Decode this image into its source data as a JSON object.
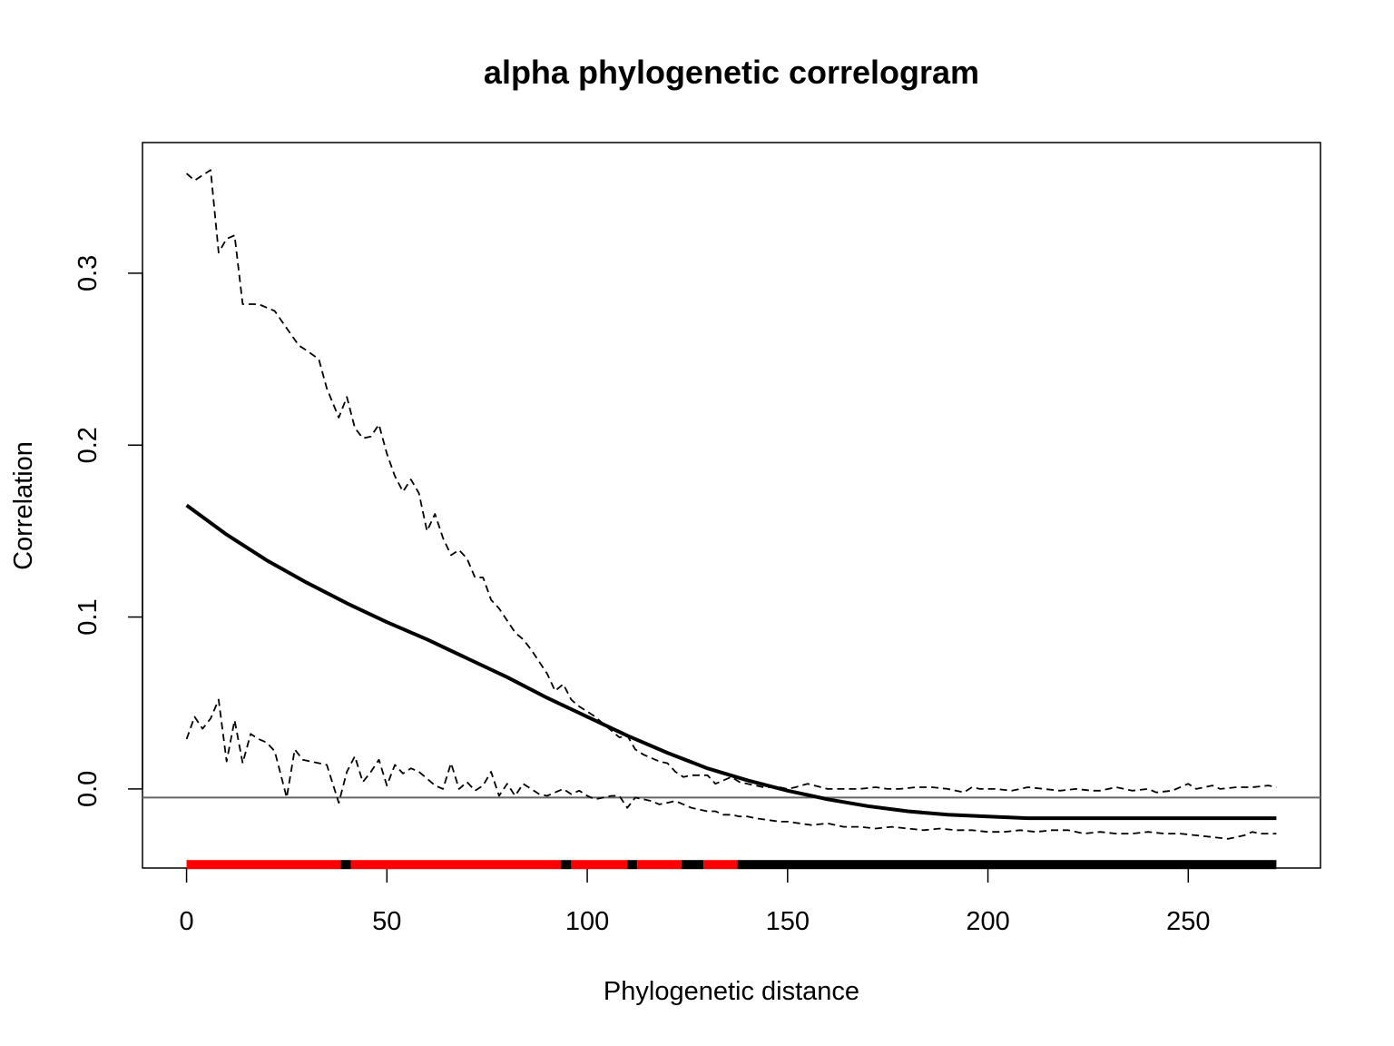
{
  "chart_data": {
    "type": "line",
    "title": "alpha phylogenetic correlogram",
    "xlabel": "Phylogenetic distance",
    "ylabel": "Correlation",
    "xlim": [
      -11,
      283
    ],
    "ylim": [
      -0.046,
      0.376
    ],
    "x_ticks": [
      0,
      50,
      100,
      150,
      200,
      250
    ],
    "x_tick_labels": [
      "0",
      "50",
      "100",
      "150",
      "200",
      "250"
    ],
    "y_ticks": [
      0.0,
      0.1,
      0.2,
      0.3
    ],
    "y_tick_labels": [
      "0.0",
      "0.1",
      "0.2",
      "0.3"
    ],
    "reference_line": {
      "y": -0.005,
      "color": "#666666"
    },
    "grid": false,
    "legend": "none",
    "series": [
      {
        "style": "solid",
        "color": "#000000",
        "x": [
          0,
          10,
          20,
          30,
          40,
          50,
          60,
          70,
          80,
          90,
          100,
          110,
          120,
          130,
          140,
          150,
          160,
          170,
          180,
          190,
          200,
          210,
          220,
          230,
          240,
          250,
          260,
          272
        ],
        "y": [
          0.165,
          0.148,
          0.133,
          0.12,
          0.108,
          0.097,
          0.087,
          0.076,
          0.065,
          0.053,
          0.042,
          0.031,
          0.021,
          0.012,
          0.005,
          -0.001,
          -0.006,
          -0.01,
          -0.013,
          -0.015,
          -0.016,
          -0.017,
          -0.017,
          -0.017,
          -0.017,
          -0.017,
          -0.017,
          -0.017
        ]
      },
      {
        "style": "dashed",
        "color": "#000000",
        "x": [
          0,
          2,
          4,
          6,
          8,
          10,
          12,
          14,
          16,
          18,
          20,
          22,
          25,
          28,
          30,
          33,
          35,
          38,
          40,
          42,
          44,
          46,
          48,
          50,
          52,
          54,
          56,
          58,
          60,
          62,
          64,
          66,
          68,
          70,
          72,
          74,
          76,
          78,
          80,
          82,
          84,
          86,
          88,
          90,
          92,
          94,
          96,
          98,
          100,
          102,
          104,
          106,
          108,
          110,
          112,
          114,
          116,
          118,
          120,
          122,
          124,
          126,
          128,
          130,
          132,
          134,
          136,
          138,
          140,
          142,
          144,
          146,
          148,
          150,
          152,
          155,
          160,
          165,
          168,
          172,
          175,
          178,
          182,
          186,
          190,
          194,
          196,
          198,
          202,
          206,
          210,
          214,
          218,
          222,
          226,
          228,
          232,
          236,
          240,
          242,
          246,
          250,
          252,
          256,
          258,
          262,
          266,
          270,
          272
        ],
        "y": [
          0.358,
          0.354,
          0.357,
          0.36,
          0.312,
          0.32,
          0.322,
          0.282,
          0.282,
          0.282,
          0.28,
          0.278,
          0.268,
          0.258,
          0.255,
          0.25,
          0.233,
          0.216,
          0.228,
          0.21,
          0.204,
          0.205,
          0.212,
          0.195,
          0.182,
          0.173,
          0.18,
          0.172,
          0.15,
          0.16,
          0.146,
          0.136,
          0.139,
          0.134,
          0.123,
          0.123,
          0.11,
          0.105,
          0.098,
          0.091,
          0.087,
          0.081,
          0.074,
          0.067,
          0.057,
          0.061,
          0.052,
          0.048,
          0.045,
          0.042,
          0.038,
          0.034,
          0.03,
          0.031,
          0.023,
          0.02,
          0.018,
          0.016,
          0.015,
          0.01,
          0.007,
          0.008,
          0.008,
          0.008,
          0.003,
          0.005,
          0.007,
          0.004,
          0.003,
          0.002,
          0.001,
          0.001,
          0.001,
          0.0,
          0.001,
          0.003,
          0.0,
          0.0,
          0.0,
          0.001,
          0.0,
          0.0,
          0.001,
          0.001,
          0.0,
          -0.002,
          0.001,
          0.0,
          0.0,
          -0.001,
          0.001,
          0.0,
          -0.001,
          0.0,
          -0.001,
          -0.001,
          0.001,
          -0.001,
          0.0,
          -0.002,
          -0.001,
          0.003,
          0.0,
          0.002,
          0.0,
          0.001,
          0.001,
          0.002,
          0.001
        ]
      },
      {
        "style": "dashed",
        "color": "#000000",
        "x": [
          0,
          2,
          4,
          6,
          8,
          10,
          12,
          14,
          16,
          18,
          20,
          22,
          25,
          27,
          29,
          31,
          33,
          35,
          38,
          40,
          42,
          44,
          46,
          48,
          50,
          52,
          54,
          56,
          58,
          60,
          62,
          64,
          66,
          68,
          70,
          72,
          74,
          76,
          78,
          80,
          82,
          84,
          86,
          88,
          90,
          92,
          94,
          96,
          98,
          100,
          102,
          104,
          106,
          108,
          110,
          112,
          114,
          116,
          118,
          120,
          122,
          124,
          126,
          128,
          130,
          132,
          134,
          136,
          138,
          140,
          142,
          145,
          148,
          150,
          153,
          156,
          160,
          164,
          168,
          172,
          176,
          180,
          184,
          188,
          192,
          196,
          200,
          204,
          208,
          212,
          216,
          220,
          224,
          228,
          232,
          236,
          240,
          244,
          248,
          252,
          256,
          260,
          264,
          266,
          268,
          270,
          272
        ],
        "y": [
          0.029,
          0.042,
          0.035,
          0.041,
          0.052,
          0.016,
          0.04,
          0.015,
          0.032,
          0.029,
          0.027,
          0.022,
          -0.005,
          0.023,
          0.017,
          0.016,
          0.015,
          0.014,
          -0.008,
          0.01,
          0.019,
          0.004,
          0.01,
          0.017,
          0.002,
          0.014,
          0.009,
          0.012,
          0.01,
          0.006,
          0.002,
          0.0,
          0.015,
          0.0,
          0.004,
          -0.001,
          0.002,
          0.01,
          -0.004,
          0.003,
          -0.004,
          0.003,
          0.0,
          -0.003,
          -0.004,
          -0.002,
          0.0,
          -0.003,
          -0.001,
          -0.004,
          -0.006,
          -0.005,
          -0.004,
          -0.004,
          -0.011,
          -0.005,
          -0.006,
          -0.007,
          -0.009,
          -0.008,
          -0.007,
          -0.009,
          -0.011,
          -0.012,
          -0.013,
          -0.013,
          -0.015,
          -0.015,
          -0.016,
          -0.016,
          -0.017,
          -0.018,
          -0.019,
          -0.019,
          -0.02,
          -0.021,
          -0.02,
          -0.022,
          -0.022,
          -0.023,
          -0.022,
          -0.023,
          -0.024,
          -0.023,
          -0.024,
          -0.024,
          -0.025,
          -0.025,
          -0.024,
          -0.025,
          -0.024,
          -0.024,
          -0.026,
          -0.025,
          -0.026,
          -0.026,
          -0.025,
          -0.026,
          -0.026,
          -0.027,
          -0.028,
          -0.029,
          -0.027,
          -0.025,
          -0.026,
          -0.026,
          -0.026
        ]
      }
    ],
    "significance_bar": {
      "y": -0.044,
      "segments": [
        {
          "from": 0,
          "to": 38.5,
          "significant": true
        },
        {
          "from": 38.5,
          "to": 41,
          "significant": false
        },
        {
          "from": 41,
          "to": 93.5,
          "significant": true
        },
        {
          "from": 93.5,
          "to": 96,
          "significant": false
        },
        {
          "from": 96,
          "to": 110,
          "significant": true
        },
        {
          "from": 110,
          "to": 112.5,
          "significant": false
        },
        {
          "from": 112.5,
          "to": 123.5,
          "significant": true
        },
        {
          "from": 123.5,
          "to": 129,
          "significant": false
        },
        {
          "from": 129,
          "to": 137.5,
          "significant": true
        },
        {
          "from": 137.5,
          "to": 272,
          "significant": false
        }
      ],
      "colors": {
        "significant": "#ff0000",
        "not_significant": "#000000"
      }
    }
  }
}
